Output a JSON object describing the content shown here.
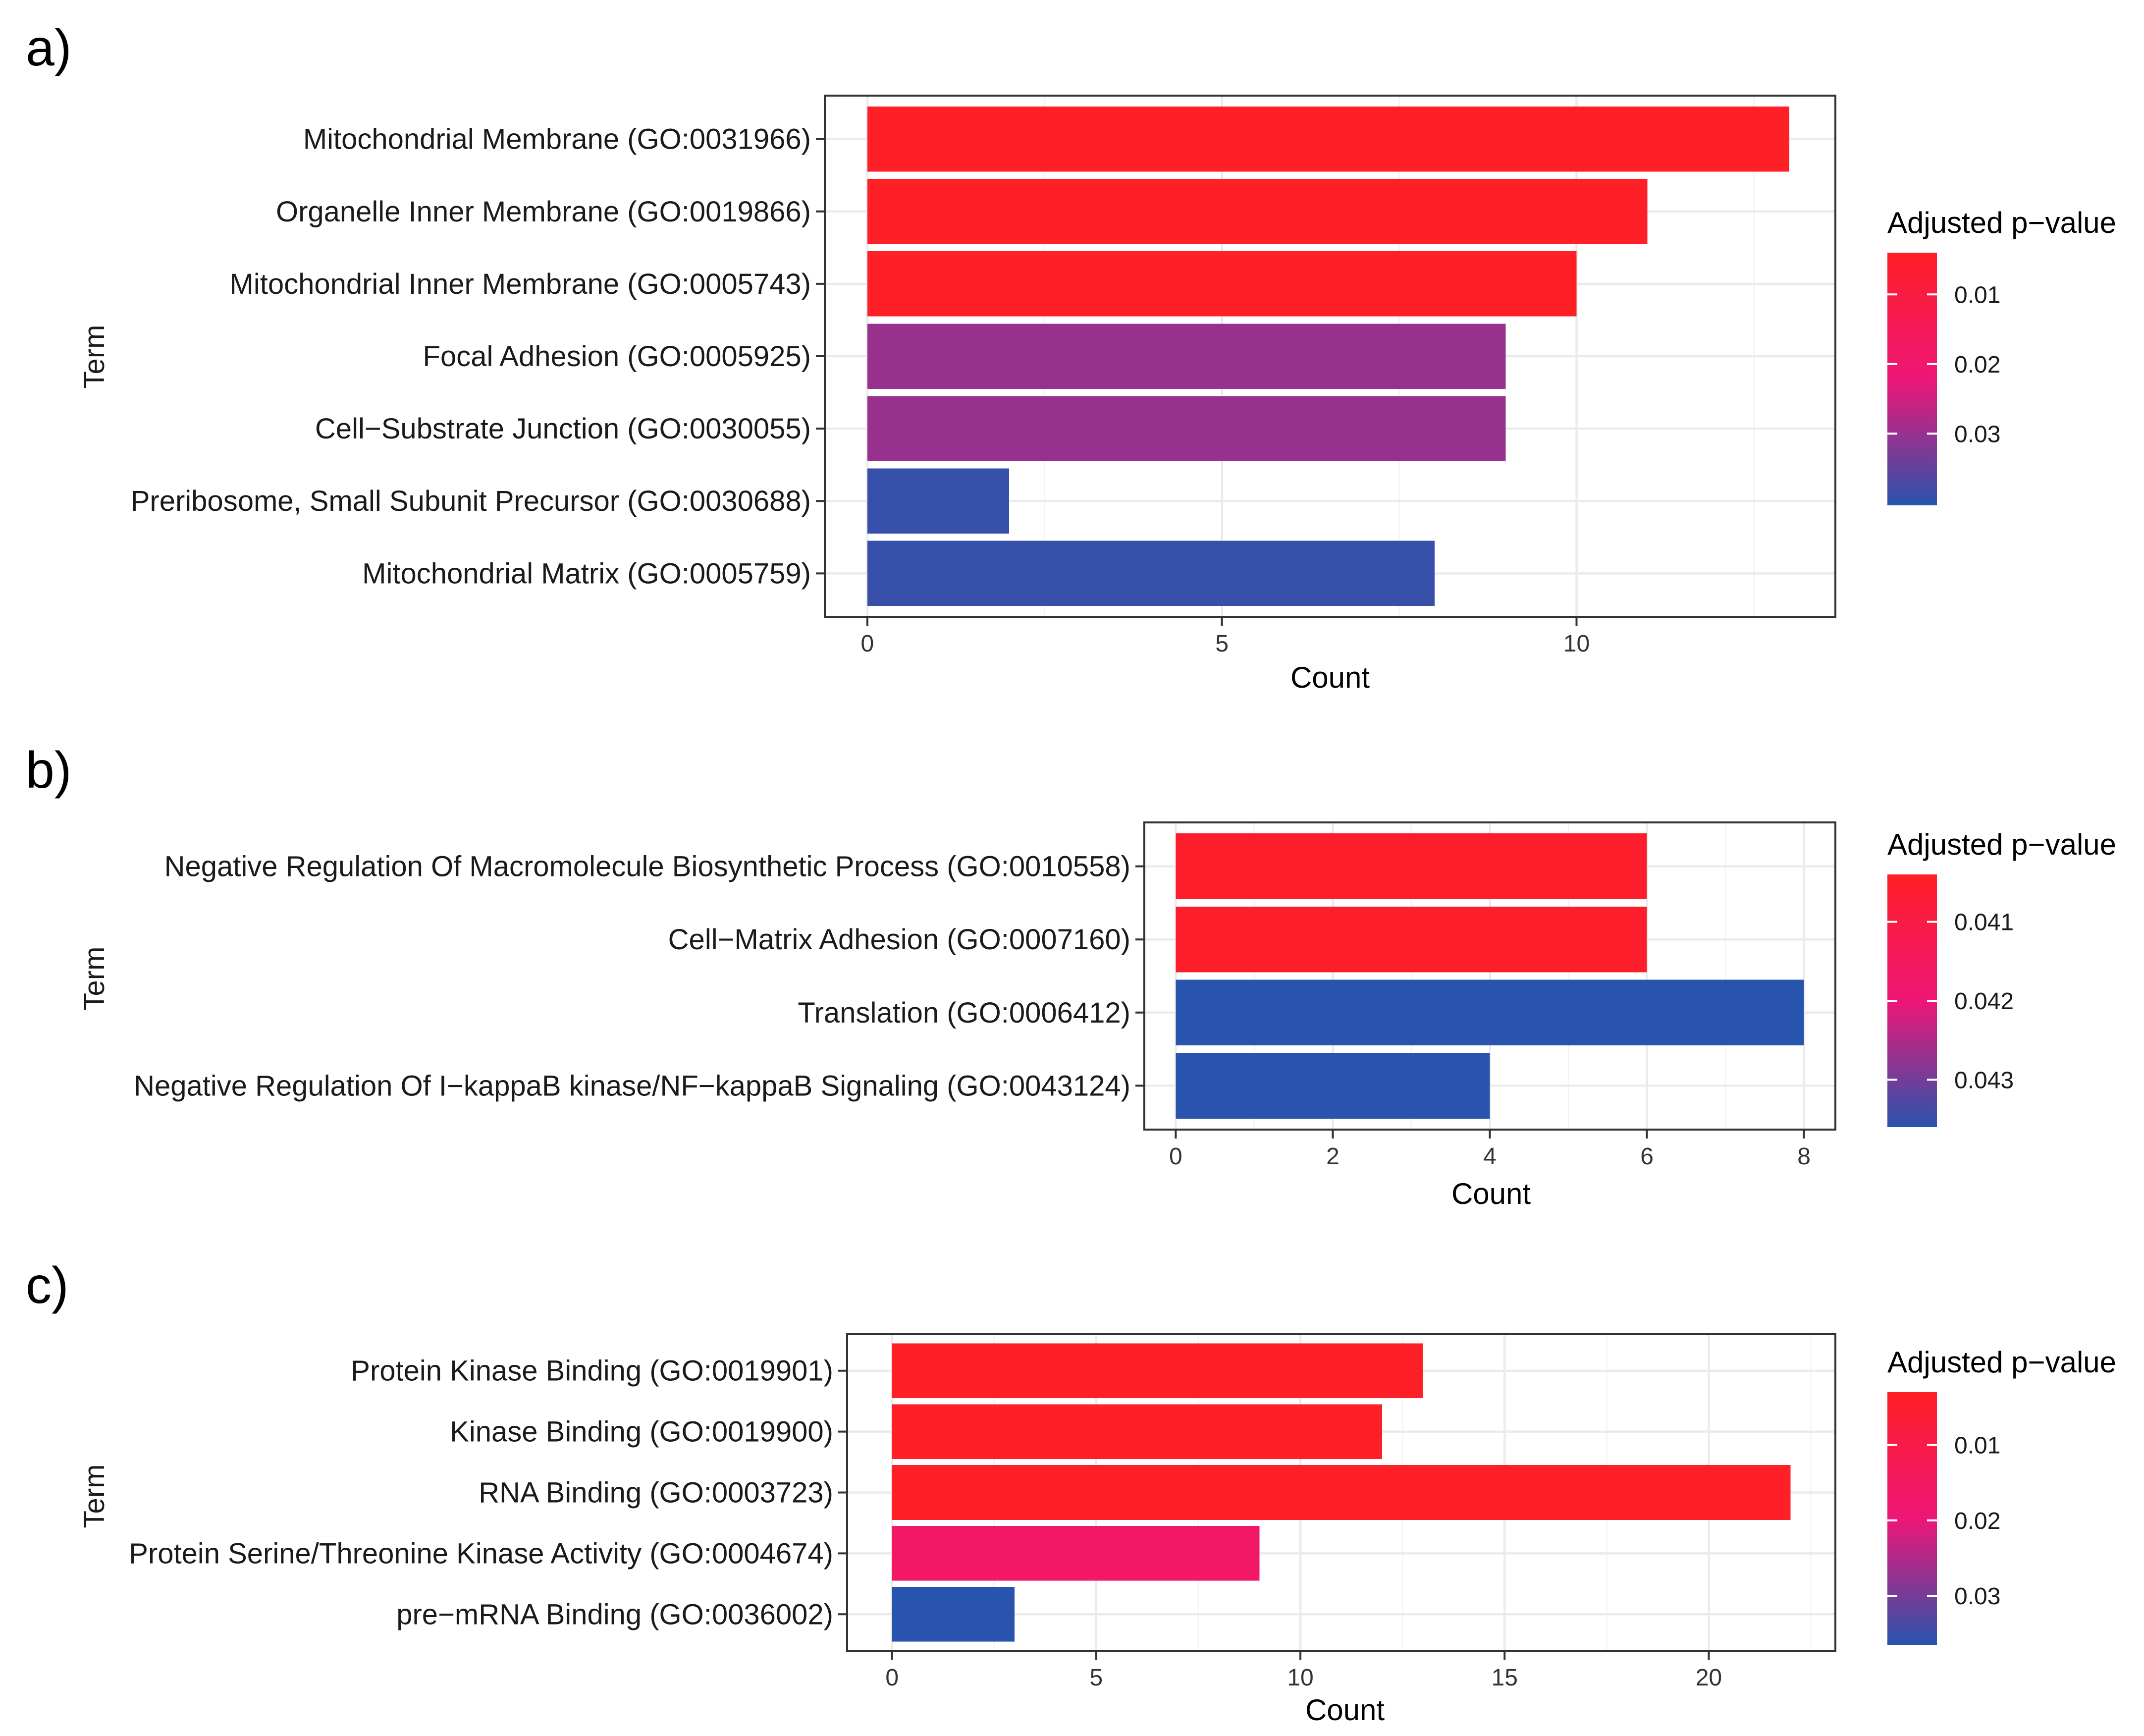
{
  "chart_data": [
    {
      "type": "bar",
      "panel": "a)",
      "orientation": "horizontal",
      "ylabel": "Term",
      "xlabel": "Count",
      "xlim": [
        -0.6,
        13.65
      ],
      "xticks": [
        "0",
        "5",
        "10"
      ],
      "xtick_values": [
        0,
        5,
        10
      ],
      "categories": [
        "Mitochondrial Membrane (GO:0031966)",
        "Organelle Inner Membrane (GO:0019866)",
        "Mitochondrial Inner Membrane (GO:0005743)",
        "Focal Adhesion (GO:0005925)",
        "Cell−Substrate Junction (GO:0030055)",
        "Preribosome, Small Subunit Precursor (GO:0030688)",
        "Mitochondrial Matrix (GO:0005759)"
      ],
      "values": [
        13,
        11,
        10,
        9,
        9,
        2,
        8
      ],
      "adjusted_pvalue": [
        0.004,
        0.004,
        0.004,
        0.03,
        0.03,
        0.039,
        0.039
      ],
      "legend": {
        "title": "Adjusted p−value",
        "labels": [
          "0.01",
          "0.02",
          "0.03"
        ],
        "label_values": [
          0.01,
          0.02,
          0.03
        ],
        "range": [
          0.004,
          0.0403
        ],
        "low_color": "#ff1f26",
        "high_color": "#2854ad"
      }
    },
    {
      "type": "bar",
      "panel": "b)",
      "orientation": "horizontal",
      "ylabel": "Term",
      "xlabel": "Count",
      "xlim": [
        -0.4,
        8.4
      ],
      "xticks": [
        "0",
        "2",
        "4",
        "6",
        "8"
      ],
      "xtick_values": [
        0,
        2,
        4,
        6,
        8
      ],
      "categories": [
        "Negative Regulation Of Macromolecule Biosynthetic Process (GO:0010558)",
        "Cell−Matrix Adhesion (GO:0007160)",
        "Translation (GO:0006412)",
        "Negative Regulation Of I−kappaB kinase/NF−kappaB Signaling (GO:0043124)"
      ],
      "values": [
        6,
        6,
        8,
        4
      ],
      "adjusted_pvalue": [
        0.0405,
        0.0405,
        0.0436,
        0.0436
      ],
      "legend": {
        "title": "Adjusted p−value",
        "labels": [
          "0.041",
          "0.042",
          "0.043"
        ],
        "label_values": [
          0.041,
          0.042,
          0.043
        ],
        "range": [
          0.0404,
          0.0436
        ],
        "low_color": "#ff1f26",
        "high_color": "#2854ad"
      }
    },
    {
      "type": "bar",
      "panel": "c)",
      "orientation": "horizontal",
      "ylabel": "Term",
      "xlabel": "Count",
      "xlim": [
        -1.1,
        23.1
      ],
      "xticks": [
        "0",
        "5",
        "10",
        "15",
        "20"
      ],
      "xtick_values": [
        0,
        5,
        10,
        15,
        20
      ],
      "categories": [
        "Protein Kinase Binding (GO:0019901)",
        "Kinase Binding (GO:0019900)",
        "RNA Binding (GO:0003723)",
        "Protein Serine/Threonine Kinase Activity (GO:0004674)",
        "pre−mRNA Binding (GO:0036002)"
      ],
      "values": [
        13,
        12,
        22,
        9,
        3
      ],
      "adjusted_pvalue": [
        0.003,
        0.003,
        0.003,
        0.016,
        0.0365
      ],
      "legend": {
        "title": "Adjusted p−value",
        "labels": [
          "0.01",
          "0.02",
          "0.03"
        ],
        "label_values": [
          0.01,
          0.02,
          0.03
        ],
        "range": [
          0.003,
          0.0365
        ],
        "low_color": "#ff1f26",
        "high_color": "#2854ad"
      }
    }
  ]
}
